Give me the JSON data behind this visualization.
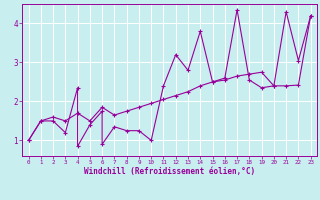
{
  "xlabel": "Windchill (Refroidissement éolien,°C)",
  "bg_color": "#c8eef0",
  "line_color": "#990099",
  "grid_color": "#ffffff",
  "spine_color": "#888888",
  "xlim": [
    -0.5,
    23.5
  ],
  "ylim": [
    0.6,
    4.5
  ],
  "xticks": [
    0,
    1,
    2,
    3,
    4,
    5,
    6,
    7,
    8,
    9,
    10,
    11,
    12,
    13,
    14,
    15,
    16,
    17,
    18,
    19,
    20,
    21,
    22,
    23
  ],
  "yticks": [
    1,
    2,
    3,
    4
  ],
  "series1_x": [
    0,
    1,
    2,
    3,
    4,
    4,
    5,
    6,
    6,
    7,
    8,
    9,
    10,
    11,
    12,
    13,
    14,
    15,
    16,
    17,
    18,
    19,
    20,
    21,
    22,
    23
  ],
  "series1_y": [
    1.0,
    1.5,
    1.5,
    1.2,
    2.35,
    0.85,
    1.4,
    1.75,
    0.9,
    1.35,
    1.25,
    1.25,
    1.0,
    2.4,
    3.2,
    2.8,
    3.8,
    2.5,
    2.6,
    4.35,
    2.55,
    2.35,
    2.4,
    4.3,
    3.05,
    4.2
  ],
  "series2_x": [
    0,
    1,
    2,
    3,
    4,
    5,
    6,
    7,
    8,
    9,
    10,
    11,
    12,
    13,
    14,
    15,
    16,
    17,
    18,
    19,
    20,
    21,
    22,
    23
  ],
  "series2_y": [
    1.0,
    1.5,
    1.6,
    1.5,
    1.7,
    1.5,
    1.85,
    1.65,
    1.75,
    1.85,
    1.95,
    2.05,
    2.15,
    2.25,
    2.4,
    2.5,
    2.55,
    2.65,
    2.7,
    2.75,
    2.4,
    2.4,
    2.42,
    4.2
  ]
}
